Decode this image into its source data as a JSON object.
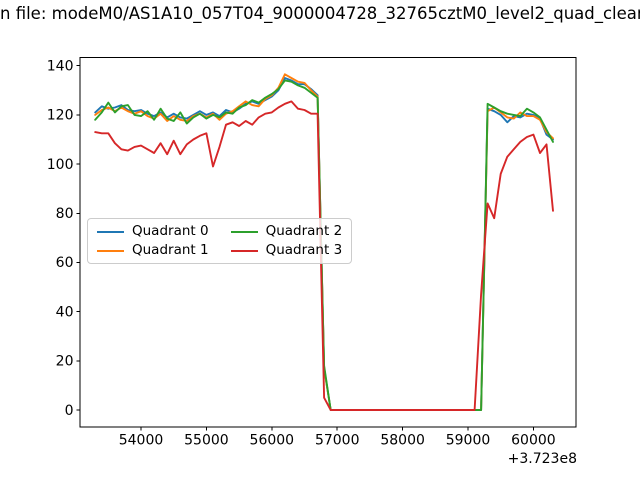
{
  "chart_data": {
    "type": "line",
    "title": "n file: modeM0/AS1A10_057T04_9000004728_32765cztM0_level2_quad_clean",
    "xlabel": "",
    "ylabel": "",
    "x_ticks": [
      54000,
      55000,
      56000,
      57000,
      58000,
      59000,
      60000
    ],
    "y_ticks": [
      0,
      20,
      40,
      60,
      80,
      100,
      120,
      140
    ],
    "x_offset_label": "+3.723e8",
    "xlim": [
      53067,
      60651
    ],
    "ylim": [
      -7,
      143.3
    ],
    "grid": false,
    "legend_position": "center-left",
    "x_start": 53300,
    "x_step": 100,
    "style": {
      "background": "#ffffff",
      "axis_color": "#000000",
      "legend_border": "#cccccc"
    },
    "series": [
      {
        "name": "Quadrant 0",
        "color": "#1f77b4",
        "values": [
          121,
          123.5,
          122.5,
          123,
          124,
          122,
          121.5,
          122,
          120.5,
          119.5,
          121,
          119,
          120.5,
          119,
          118.5,
          120,
          121.5,
          120,
          121,
          119.5,
          122,
          121,
          122.5,
          124.5,
          125.5,
          124.5,
          126,
          127.5,
          130,
          135,
          134,
          132.5,
          132.5,
          130.5,
          128,
          17,
          0,
          0,
          0,
          0,
          0,
          0,
          0,
          0,
          0,
          0,
          0,
          0,
          0,
          0,
          0,
          0,
          0,
          0,
          0,
          0,
          0,
          0,
          0,
          0,
          122.5,
          121.5,
          120,
          117,
          119.5,
          119,
          120.5,
          120,
          118.5,
          112,
          110
        ]
      },
      {
        "name": "Quadrant 1",
        "color": "#ff7f0e",
        "values": [
          120,
          122,
          123,
          121.5,
          123,
          121.5,
          120.5,
          121.5,
          119.5,
          118.5,
          120.5,
          117.5,
          119.5,
          118,
          117.5,
          119.5,
          120.5,
          119,
          120.5,
          118,
          120.5,
          121.5,
          123.5,
          125.5,
          124,
          123.5,
          126.5,
          128,
          131,
          136.5,
          135,
          133.5,
          133,
          130,
          127.5,
          17,
          0,
          0,
          0,
          0,
          0,
          0,
          0,
          0,
          0,
          0,
          0,
          0,
          0,
          0,
          0,
          0,
          0,
          0,
          0,
          0,
          0,
          0,
          0,
          0,
          121.5,
          123,
          121,
          119,
          118.5,
          121,
          119.5,
          119.5,
          118,
          113,
          110.5
        ]
      },
      {
        "name": "Quadrant 2",
        "color": "#2ca02c",
        "values": [
          118,
          121,
          125,
          121,
          123.5,
          124,
          120,
          119.5,
          121.5,
          118,
          122.5,
          118.5,
          117.5,
          121,
          116.5,
          119,
          120.5,
          118.5,
          120,
          119,
          121,
          120.5,
          123,
          124,
          126,
          125,
          127,
          128.5,
          130.5,
          134,
          133.5,
          132,
          131,
          129,
          127,
          18,
          0,
          0,
          0,
          0,
          0,
          0,
          0,
          0,
          0,
          0,
          0,
          0,
          0,
          0,
          0,
          0,
          0,
          0,
          0,
          0,
          0,
          0,
          0,
          0,
          124.5,
          123,
          121.5,
          120.5,
          120,
          119.5,
          122.5,
          121,
          119,
          114,
          109
        ]
      },
      {
        "name": "Quadrant 3",
        "color": "#d62728",
        "values": [
          113,
          112.5,
          112.5,
          108.5,
          106,
          105.5,
          107,
          107.5,
          106,
          104.5,
          108.5,
          104,
          109.5,
          104,
          108,
          110,
          111.5,
          112.5,
          99,
          107,
          116,
          117,
          115.5,
          117.5,
          116,
          119,
          120.5,
          121,
          123,
          124.5,
          125.5,
          122.5,
          122,
          120.5,
          120.5,
          5,
          0,
          0,
          0,
          0,
          0,
          0,
          0,
          0,
          0,
          0,
          0,
          0,
          0,
          0,
          0,
          0,
          0,
          0,
          0,
          0,
          0,
          0,
          0,
          47,
          84,
          78,
          96,
          103,
          106,
          109,
          111,
          112,
          104.5,
          108,
          81
        ]
      }
    ]
  }
}
